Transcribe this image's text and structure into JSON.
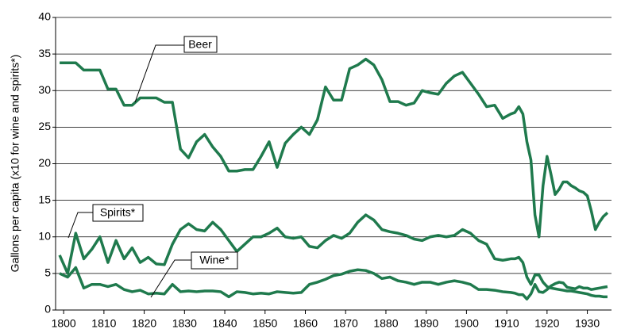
{
  "chart_data": {
    "type": "line",
    "y_label": "Gallons per capita  (x10 for wine and spirits*)",
    "x": [
      1799,
      1801,
      1803,
      1805,
      1807,
      1809,
      1811,
      1813,
      1815,
      1817,
      1819,
      1821,
      1823,
      1825,
      1827,
      1829,
      1831,
      1833,
      1835,
      1837,
      1839,
      1841,
      1843,
      1845,
      1847,
      1849,
      1851,
      1853,
      1855,
      1857,
      1859,
      1861,
      1863,
      1865,
      1867,
      1869,
      1871,
      1873,
      1875,
      1877,
      1879,
      1881,
      1883,
      1885,
      1887,
      1889,
      1891,
      1893,
      1895,
      1897,
      1899,
      1901,
      1903,
      1905,
      1907,
      1909,
      1911,
      1912,
      1913,
      1914,
      1915,
      1916,
      1917,
      1918,
      1919,
      1920,
      1921,
      1922,
      1923,
      1924,
      1925,
      1926,
      1927,
      1928,
      1929,
      1930,
      1931,
      1932,
      1933,
      1934,
      1935
    ],
    "series": [
      {
        "name": "Beer",
        "color": "#1f7a4d",
        "values": [
          33.8,
          33.8,
          33.8,
          32.8,
          32.8,
          32.8,
          30.2,
          30.2,
          28,
          28,
          29,
          29,
          29,
          28.4,
          28.4,
          22,
          20.8,
          23,
          24,
          22.3,
          21,
          19,
          19,
          19.2,
          19.2,
          21,
          23,
          19.5,
          22.8,
          24,
          25,
          24,
          26,
          30.5,
          28.7,
          28.7,
          33,
          33.5,
          34.3,
          33.5,
          31.5,
          28.5,
          28.5,
          28,
          28.3,
          30,
          29.7,
          29.5,
          31,
          32,
          32.5,
          31,
          29.5,
          27.8,
          28,
          26.2,
          26.8,
          27,
          27.8,
          26.8,
          23,
          20.5,
          13,
          10,
          17,
          21,
          18.5,
          15.8,
          16.5,
          17.5,
          17.5,
          17,
          16.7,
          16.3,
          16.1,
          15.6,
          13.5,
          11,
          12,
          12.8,
          13.3
        ]
      },
      {
        "name": "Spirits*",
        "color": "#1f7a4d",
        "values": [
          7.5,
          5,
          10.5,
          7,
          8.3,
          10,
          6.5,
          9.5,
          7,
          8.5,
          6.5,
          7.2,
          6.3,
          6.2,
          9,
          11,
          11.8,
          11,
          10.8,
          12,
          11,
          9.5,
          8,
          9,
          10,
          10,
          10.5,
          11.2,
          10,
          9.8,
          10,
          8.7,
          8.5,
          9.5,
          10.2,
          9.8,
          10.5,
          12,
          13,
          12.3,
          11,
          10.7,
          10.5,
          10.2,
          9.7,
          9.5,
          10,
          10.2,
          10,
          10.2,
          11,
          10.5,
          9.5,
          9,
          7,
          6.8,
          7,
          7,
          7.2,
          6.5,
          4.5,
          3.5,
          4.8,
          4.8,
          3.8,
          3.2,
          3,
          2.9,
          2.8,
          2.7,
          2.6,
          2.6,
          2.5,
          2.4,
          2.3,
          2.2,
          2,
          1.9,
          1.9,
          1.8,
          1.8
        ]
      },
      {
        "name": "Wine*",
        "color": "#1f7a4d",
        "values": [
          5,
          4.5,
          5.8,
          3,
          3.5,
          3.5,
          3.2,
          3.5,
          2.8,
          2.5,
          2.7,
          2.2,
          2.3,
          2.2,
          3.5,
          2.5,
          2.6,
          2.5,
          2.6,
          2.6,
          2.5,
          1.8,
          2.5,
          2.4,
          2.2,
          2.3,
          2.2,
          2.5,
          2.4,
          2.3,
          2.4,
          3.5,
          3.8,
          4.2,
          4.7,
          4.9,
          5.3,
          5.5,
          5.4,
          5,
          4.3,
          4.5,
          4,
          3.8,
          3.5,
          3.8,
          3.8,
          3.5,
          3.8,
          4,
          3.8,
          3.5,
          2.8,
          2.8,
          2.7,
          2.5,
          2.4,
          2.3,
          2.1,
          2.1,
          1.5,
          2.2,
          3.5,
          2.5,
          2.4,
          2.8,
          3.3,
          3.6,
          3.8,
          3.7,
          3.1,
          3,
          2.9,
          3.2,
          3,
          3,
          2.8,
          2.9,
          3,
          3.1,
          3.2
        ]
      }
    ],
    "xlim": [
      1798,
      1936
    ],
    "xticks": [
      1800,
      1810,
      1820,
      1830,
      1840,
      1850,
      1860,
      1870,
      1880,
      1890,
      1900,
      1910,
      1920,
      1930
    ],
    "ylim": [
      0,
      40
    ],
    "yticks": [
      0,
      5,
      10,
      15,
      20,
      25,
      30,
      35,
      40
    ],
    "grid": true
  }
}
